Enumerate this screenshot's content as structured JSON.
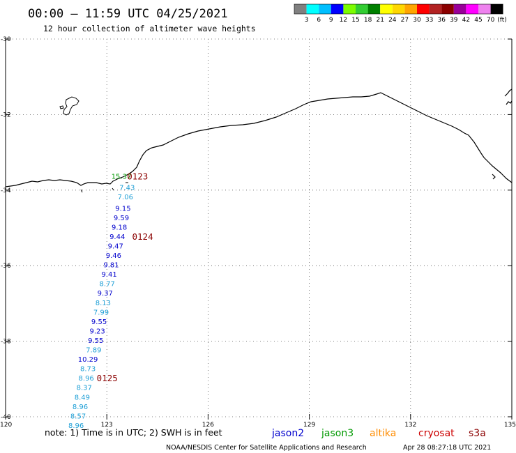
{
  "title": "00:00 – 11:59 UTC 04/25/2021",
  "subtitle": "12 hour collection of altimeter wave heights",
  "colorbar": {
    "unit": "(ft)",
    "ticks": [
      "3",
      "6",
      "9",
      "12",
      "15",
      "18",
      "21",
      "24",
      "27",
      "30",
      "33",
      "36",
      "39",
      "42",
      "45",
      "70"
    ],
    "colors": [
      "#808080",
      "#00ffff",
      "#00bfff",
      "#0000ff",
      "#7cfc00",
      "#32cd32",
      "#008000",
      "#ffff00",
      "#ffd700",
      "#ffa500",
      "#ff0000",
      "#b22222",
      "#8b0000",
      "#990099",
      "#ff00ff",
      "#ee82ee",
      "#000000"
    ]
  },
  "map": {
    "lon_ticks": [
      "120",
      "123",
      "126",
      "129",
      "132",
      "135"
    ],
    "lat_ticks": [
      "-30",
      "-32",
      "-34",
      "-36",
      "-38",
      "-40"
    ],
    "lon_range": [
      120,
      135
    ],
    "lat_range": [
      -30,
      -40
    ]
  },
  "track": {
    "points": [
      {
        "label": "15.37",
        "lon": 123.43,
        "lat": -33.63,
        "sat": "jason3"
      },
      {
        "label": "7.43",
        "lon": 123.6,
        "lat": -33.92,
        "sat": "jason2_light"
      },
      {
        "label": "7.06",
        "lon": 123.55,
        "lat": -34.17,
        "sat": "jason2_light"
      },
      {
        "label": "9.15",
        "lon": 123.48,
        "lat": -34.47,
        "sat": "jason2"
      },
      {
        "label": "9.59",
        "lon": 123.43,
        "lat": -34.72,
        "sat": "jason2"
      },
      {
        "label": "9.18",
        "lon": 123.37,
        "lat": -34.97,
        "sat": "jason2"
      },
      {
        "label": "9.44",
        "lon": 123.31,
        "lat": -35.22,
        "sat": "jason2"
      },
      {
        "label": "9.47",
        "lon": 123.26,
        "lat": -35.47,
        "sat": "jason2"
      },
      {
        "label": "9.46",
        "lon": 123.2,
        "lat": -35.72,
        "sat": "jason2"
      },
      {
        "label": "9.81",
        "lon": 123.13,
        "lat": -35.97,
        "sat": "jason2"
      },
      {
        "label": "9.41",
        "lon": 123.07,
        "lat": -36.22,
        "sat": "jason2"
      },
      {
        "label": "8.77",
        "lon": 123.01,
        "lat": -36.47,
        "sat": "jason2_light"
      },
      {
        "label": "9.37",
        "lon": 122.95,
        "lat": -36.72,
        "sat": "jason2"
      },
      {
        "label": "8.13",
        "lon": 122.89,
        "lat": -36.97,
        "sat": "jason2_light"
      },
      {
        "label": "7.99",
        "lon": 122.83,
        "lat": -37.22,
        "sat": "jason2_light"
      },
      {
        "label": "9.55",
        "lon": 122.77,
        "lat": -37.47,
        "sat": "jason2"
      },
      {
        "label": "9.23",
        "lon": 122.72,
        "lat": -37.72,
        "sat": "jason2"
      },
      {
        "label": "9.55",
        "lon": 122.67,
        "lat": -37.97,
        "sat": "jason2"
      },
      {
        "label": "7.89",
        "lon": 122.61,
        "lat": -38.22,
        "sat": "jason2_light"
      },
      {
        "label": "10.29",
        "lon": 122.44,
        "lat": -38.47,
        "sat": "jason2"
      },
      {
        "label": "8.73",
        "lon": 122.44,
        "lat": -38.72,
        "sat": "jason2_light"
      },
      {
        "label": "8.96",
        "lon": 122.39,
        "lat": -38.97,
        "sat": "jason2_light"
      },
      {
        "label": "8.37",
        "lon": 122.33,
        "lat": -39.22,
        "sat": "jason2_light"
      },
      {
        "label": "8.49",
        "lon": 122.27,
        "lat": -39.47,
        "sat": "jason2_light"
      },
      {
        "label": "8.96",
        "lon": 122.21,
        "lat": -39.72,
        "sat": "jason2_light"
      },
      {
        "label": "8.57",
        "lon": 122.15,
        "lat": -39.97,
        "sat": "jason2_light"
      },
      {
        "label": "8.96",
        "lon": 122.09,
        "lat": -40.22,
        "sat": "jason2_light"
      }
    ],
    "time_labels": [
      {
        "label": "0123",
        "lon": 123.6,
        "lat": -33.63
      },
      {
        "label": "0124",
        "lon": 123.75,
        "lat": -35.22
      },
      {
        "label": "0125",
        "lon": 122.7,
        "lat": -38.97
      }
    ]
  },
  "sat_colors": {
    "jason2": "#0000cd",
    "jason2_light": "#1e9fd6",
    "jason3": "#009900"
  },
  "note": "note:  1) Time is in UTC;  2) SWH is in feet",
  "legend": [
    {
      "name": "jason2",
      "color": "#0000cd"
    },
    {
      "name": "jason3",
      "color": "#009900"
    },
    {
      "name": "altika",
      "color": "#ff8c00"
    },
    {
      "name": "cryosat",
      "color": "#cc0000"
    },
    {
      "name": "s3a",
      "color": "#8b0000"
    }
  ],
  "credit": "NOAA/NESDIS Center for Satellite Applications and Research",
  "timestamp": "Apr 28 08:27:18 UTC 2021"
}
